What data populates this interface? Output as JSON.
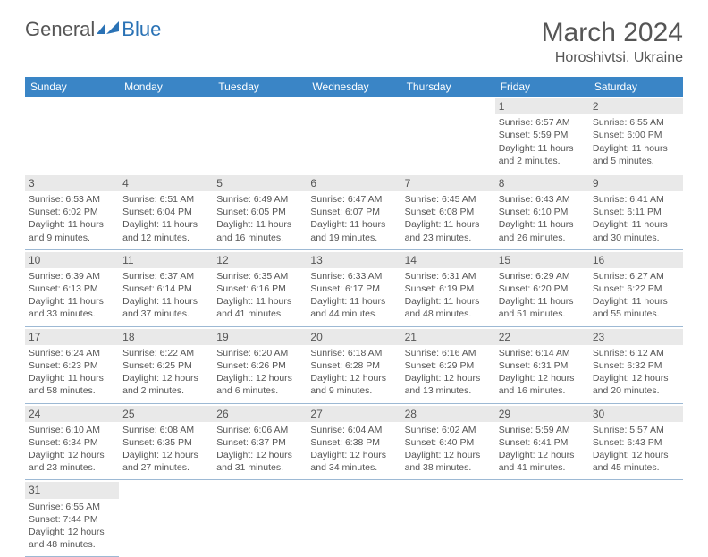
{
  "logo": {
    "general": "General",
    "blue": "Blue"
  },
  "title": "March 2024",
  "location": "Horoshivtsi, Ukraine",
  "colors": {
    "header_bg": "#3a85c6",
    "daynum_bg": "#e9e9e9",
    "border": "#9db9d4",
    "text": "#555555"
  },
  "weekdays": [
    "Sunday",
    "Monday",
    "Tuesday",
    "Wednesday",
    "Thursday",
    "Friday",
    "Saturday"
  ],
  "weeks": [
    [
      null,
      null,
      null,
      null,
      null,
      {
        "n": "1",
        "sr": "Sunrise: 6:57 AM",
        "ss": "Sunset: 5:59 PM",
        "d1": "Daylight: 11 hours",
        "d2": "and 2 minutes."
      },
      {
        "n": "2",
        "sr": "Sunrise: 6:55 AM",
        "ss": "Sunset: 6:00 PM",
        "d1": "Daylight: 11 hours",
        "d2": "and 5 minutes."
      }
    ],
    [
      {
        "n": "3",
        "sr": "Sunrise: 6:53 AM",
        "ss": "Sunset: 6:02 PM",
        "d1": "Daylight: 11 hours",
        "d2": "and 9 minutes."
      },
      {
        "n": "4",
        "sr": "Sunrise: 6:51 AM",
        "ss": "Sunset: 6:04 PM",
        "d1": "Daylight: 11 hours",
        "d2": "and 12 minutes."
      },
      {
        "n": "5",
        "sr": "Sunrise: 6:49 AM",
        "ss": "Sunset: 6:05 PM",
        "d1": "Daylight: 11 hours",
        "d2": "and 16 minutes."
      },
      {
        "n": "6",
        "sr": "Sunrise: 6:47 AM",
        "ss": "Sunset: 6:07 PM",
        "d1": "Daylight: 11 hours",
        "d2": "and 19 minutes."
      },
      {
        "n": "7",
        "sr": "Sunrise: 6:45 AM",
        "ss": "Sunset: 6:08 PM",
        "d1": "Daylight: 11 hours",
        "d2": "and 23 minutes."
      },
      {
        "n": "8",
        "sr": "Sunrise: 6:43 AM",
        "ss": "Sunset: 6:10 PM",
        "d1": "Daylight: 11 hours",
        "d2": "and 26 minutes."
      },
      {
        "n": "9",
        "sr": "Sunrise: 6:41 AM",
        "ss": "Sunset: 6:11 PM",
        "d1": "Daylight: 11 hours",
        "d2": "and 30 minutes."
      }
    ],
    [
      {
        "n": "10",
        "sr": "Sunrise: 6:39 AM",
        "ss": "Sunset: 6:13 PM",
        "d1": "Daylight: 11 hours",
        "d2": "and 33 minutes."
      },
      {
        "n": "11",
        "sr": "Sunrise: 6:37 AM",
        "ss": "Sunset: 6:14 PM",
        "d1": "Daylight: 11 hours",
        "d2": "and 37 minutes."
      },
      {
        "n": "12",
        "sr": "Sunrise: 6:35 AM",
        "ss": "Sunset: 6:16 PM",
        "d1": "Daylight: 11 hours",
        "d2": "and 41 minutes."
      },
      {
        "n": "13",
        "sr": "Sunrise: 6:33 AM",
        "ss": "Sunset: 6:17 PM",
        "d1": "Daylight: 11 hours",
        "d2": "and 44 minutes."
      },
      {
        "n": "14",
        "sr": "Sunrise: 6:31 AM",
        "ss": "Sunset: 6:19 PM",
        "d1": "Daylight: 11 hours",
        "d2": "and 48 minutes."
      },
      {
        "n": "15",
        "sr": "Sunrise: 6:29 AM",
        "ss": "Sunset: 6:20 PM",
        "d1": "Daylight: 11 hours",
        "d2": "and 51 minutes."
      },
      {
        "n": "16",
        "sr": "Sunrise: 6:27 AM",
        "ss": "Sunset: 6:22 PM",
        "d1": "Daylight: 11 hours",
        "d2": "and 55 minutes."
      }
    ],
    [
      {
        "n": "17",
        "sr": "Sunrise: 6:24 AM",
        "ss": "Sunset: 6:23 PM",
        "d1": "Daylight: 11 hours",
        "d2": "and 58 minutes."
      },
      {
        "n": "18",
        "sr": "Sunrise: 6:22 AM",
        "ss": "Sunset: 6:25 PM",
        "d1": "Daylight: 12 hours",
        "d2": "and 2 minutes."
      },
      {
        "n": "19",
        "sr": "Sunrise: 6:20 AM",
        "ss": "Sunset: 6:26 PM",
        "d1": "Daylight: 12 hours",
        "d2": "and 6 minutes."
      },
      {
        "n": "20",
        "sr": "Sunrise: 6:18 AM",
        "ss": "Sunset: 6:28 PM",
        "d1": "Daylight: 12 hours",
        "d2": "and 9 minutes."
      },
      {
        "n": "21",
        "sr": "Sunrise: 6:16 AM",
        "ss": "Sunset: 6:29 PM",
        "d1": "Daylight: 12 hours",
        "d2": "and 13 minutes."
      },
      {
        "n": "22",
        "sr": "Sunrise: 6:14 AM",
        "ss": "Sunset: 6:31 PM",
        "d1": "Daylight: 12 hours",
        "d2": "and 16 minutes."
      },
      {
        "n": "23",
        "sr": "Sunrise: 6:12 AM",
        "ss": "Sunset: 6:32 PM",
        "d1": "Daylight: 12 hours",
        "d2": "and 20 minutes."
      }
    ],
    [
      {
        "n": "24",
        "sr": "Sunrise: 6:10 AM",
        "ss": "Sunset: 6:34 PM",
        "d1": "Daylight: 12 hours",
        "d2": "and 23 minutes."
      },
      {
        "n": "25",
        "sr": "Sunrise: 6:08 AM",
        "ss": "Sunset: 6:35 PM",
        "d1": "Daylight: 12 hours",
        "d2": "and 27 minutes."
      },
      {
        "n": "26",
        "sr": "Sunrise: 6:06 AM",
        "ss": "Sunset: 6:37 PM",
        "d1": "Daylight: 12 hours",
        "d2": "and 31 minutes."
      },
      {
        "n": "27",
        "sr": "Sunrise: 6:04 AM",
        "ss": "Sunset: 6:38 PM",
        "d1": "Daylight: 12 hours",
        "d2": "and 34 minutes."
      },
      {
        "n": "28",
        "sr": "Sunrise: 6:02 AM",
        "ss": "Sunset: 6:40 PM",
        "d1": "Daylight: 12 hours",
        "d2": "and 38 minutes."
      },
      {
        "n": "29",
        "sr": "Sunrise: 5:59 AM",
        "ss": "Sunset: 6:41 PM",
        "d1": "Daylight: 12 hours",
        "d2": "and 41 minutes."
      },
      {
        "n": "30",
        "sr": "Sunrise: 5:57 AM",
        "ss": "Sunset: 6:43 PM",
        "d1": "Daylight: 12 hours",
        "d2": "and 45 minutes."
      }
    ],
    [
      {
        "n": "31",
        "sr": "Sunrise: 6:55 AM",
        "ss": "Sunset: 7:44 PM",
        "d1": "Daylight: 12 hours",
        "d2": "and 48 minutes."
      },
      null,
      null,
      null,
      null,
      null,
      null
    ]
  ]
}
